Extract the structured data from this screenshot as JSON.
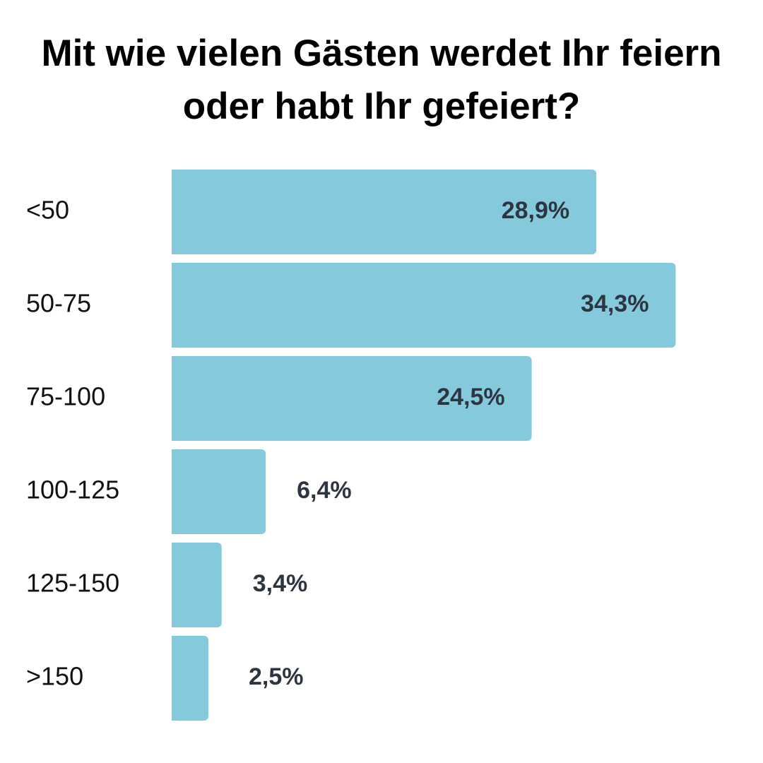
{
  "chart_data": {
    "type": "bar",
    "orientation": "horizontal",
    "title": "Mit wie vielen Gästen werdet Ihr feiern oder habt Ihr gefeiert?",
    "categories": [
      "<50",
      "50-75",
      "75-100",
      "100-125",
      "125-150",
      ">150"
    ],
    "values": [
      28.9,
      34.3,
      24.5,
      6.4,
      3.4,
      2.5
    ],
    "value_labels": [
      "28,9%",
      "34,3%",
      "24,5%",
      "6,4%",
      "3,4%",
      "2,5%"
    ],
    "color": "#85c9dc"
  }
}
